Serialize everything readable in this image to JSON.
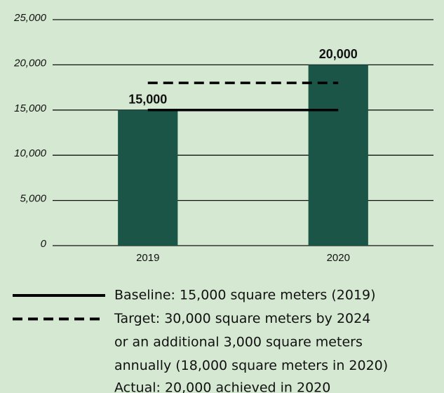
{
  "chart_data": {
    "type": "bar",
    "categories": [
      "2019",
      "2020"
    ],
    "values": [
      15000,
      20000
    ],
    "value_labels": [
      "15,000",
      "20,000"
    ],
    "color": "#1a5547",
    "ylim": [
      0,
      25000
    ],
    "yticks": [
      0,
      {
        "value": 5000,
        "label": "5,000"
      },
      {
        "value": 10000,
        "label": "10,000"
      },
      {
        "value": 15000,
        "label": "15,000"
      },
      {
        "value": 20000,
        "label": "20,000"
      },
      {
        "value": 25000,
        "label": "25,000"
      }
    ],
    "grid": true,
    "reference_lines": [
      {
        "name": [
          "Baseline: 15,000 square meters (2019)"
        ],
        "value": 15000,
        "dashed": false
      },
      {
        "name": [
          "Target: 30,000 square meters by 2024",
          "or an additional 3,000 square meters",
          "annually (18,000 square meters in 2020)"
        ],
        "value": 18000,
        "dashed": true
      }
    ],
    "note": "Actual: 20,000 achieved in 2020"
  }
}
